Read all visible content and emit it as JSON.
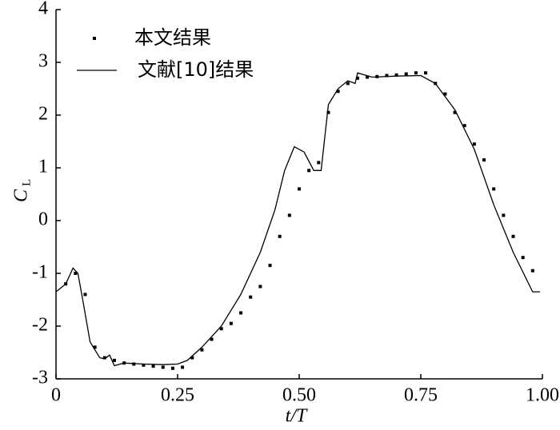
{
  "chart_data": {
    "type": "line",
    "xlabel": "t/T",
    "ylabel": "C",
    "ylabel_sub": "L",
    "xlim": [
      0,
      1
    ],
    "ylim": [
      -3,
      4
    ],
    "xticks": [
      0,
      0.25,
      {
        "value": 0.5,
        "label": "0.50"
      },
      0.75,
      {
        "value": 1,
        "label": "1.00"
      }
    ],
    "yticks": [
      -3,
      -2,
      -1,
      0,
      1,
      2,
      3,
      4
    ],
    "legend": "upper left",
    "series": [
      {
        "name": "本文结果",
        "color": "#000000",
        "style": "markers",
        "x": [
          0.02,
          0.04,
          0.06,
          0.08,
          0.1,
          0.12,
          0.14,
          0.16,
          0.18,
          0.2,
          0.22,
          0.24,
          0.26,
          0.28,
          0.3,
          0.32,
          0.34,
          0.36,
          0.38,
          0.4,
          0.42,
          0.44,
          0.46,
          0.48,
          0.5,
          0.52,
          0.54,
          0.56,
          0.58,
          0.6,
          0.62,
          0.64,
          0.66,
          0.68,
          0.7,
          0.72,
          0.74,
          0.76,
          0.78,
          0.8,
          0.82,
          0.84,
          0.86,
          0.88,
          0.9,
          0.92,
          0.94,
          0.96,
          0.98
        ],
        "values": [
          -1.2,
          -1.0,
          -1.4,
          -2.4,
          -2.6,
          -2.65,
          -2.7,
          -2.72,
          -2.74,
          -2.76,
          -2.78,
          -2.8,
          -2.78,
          -2.6,
          -2.45,
          -2.25,
          -2.05,
          -1.95,
          -1.75,
          -1.45,
          -1.25,
          -0.85,
          -0.3,
          0.1,
          0.6,
          0.95,
          1.1,
          2.05,
          2.45,
          2.6,
          2.7,
          2.72,
          2.73,
          2.75,
          2.76,
          2.78,
          2.8,
          2.8,
          2.6,
          2.4,
          2.05,
          1.8,
          1.45,
          1.15,
          0.6,
          0.1,
          -0.3,
          -0.7,
          -0.95
        ]
      },
      {
        "name": "文献[10]结果",
        "color": "#000000",
        "style": "line",
        "x": [
          0,
          0.02,
          0.035,
          0.045,
          0.055,
          0.07,
          0.09,
          0.1,
          0.11,
          0.12,
          0.14,
          0.18,
          0.22,
          0.25,
          0.27,
          0.3,
          0.34,
          0.38,
          0.42,
          0.45,
          0.47,
          0.49,
          0.51,
          0.53,
          0.545,
          0.56,
          0.58,
          0.6,
          0.615,
          0.62,
          0.65,
          0.7,
          0.75,
          0.78,
          0.82,
          0.86,
          0.9,
          0.94,
          0.98,
          0.995
        ],
        "values": [
          -1.35,
          -1.2,
          -0.9,
          -1.0,
          -1.5,
          -2.3,
          -2.6,
          -2.62,
          -2.55,
          -2.75,
          -2.7,
          -2.72,
          -2.73,
          -2.72,
          -2.65,
          -2.4,
          -2.0,
          -1.4,
          -0.6,
          0.2,
          0.95,
          1.4,
          1.3,
          0.95,
          0.95,
          2.2,
          2.5,
          2.65,
          2.6,
          2.8,
          2.72,
          2.74,
          2.75,
          2.6,
          2.1,
          1.35,
          0.3,
          -0.6,
          -1.35,
          -1.35
        ]
      }
    ]
  }
}
